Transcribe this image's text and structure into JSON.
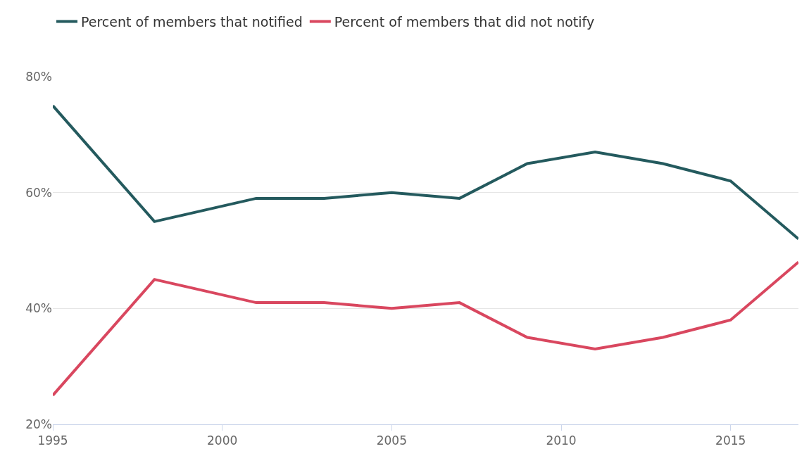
{
  "chart_data": {
    "type": "line",
    "x": [
      1995,
      1998,
      2001,
      2003,
      2005,
      2007,
      2009,
      2011,
      2013,
      2015,
      2017
    ],
    "series": [
      {
        "name": "Percent of members that notified",
        "color": "#245a5e",
        "values": [
          75,
          55,
          59,
          59,
          60,
          59,
          65,
          67,
          65,
          62,
          52
        ]
      },
      {
        "name": "Percent of members that did not notify",
        "color": "#d9475f",
        "values": [
          25,
          45,
          41,
          41,
          40,
          41,
          35,
          33,
          35,
          38,
          48
        ]
      }
    ],
    "xlim": [
      1995,
      2017
    ],
    "xticks": [
      1995,
      2000,
      2005,
      2010,
      2015
    ],
    "ylim": [
      20,
      80
    ],
    "yticks": [
      {
        "value": 20,
        "label": "20%"
      },
      {
        "value": 40,
        "label": "40%"
      },
      {
        "value": 60,
        "label": "60%"
      },
      {
        "value": 80,
        "label": "80%"
      }
    ],
    "grid": "y",
    "legend": "top left",
    "marker": "none",
    "line_style": "solid"
  }
}
